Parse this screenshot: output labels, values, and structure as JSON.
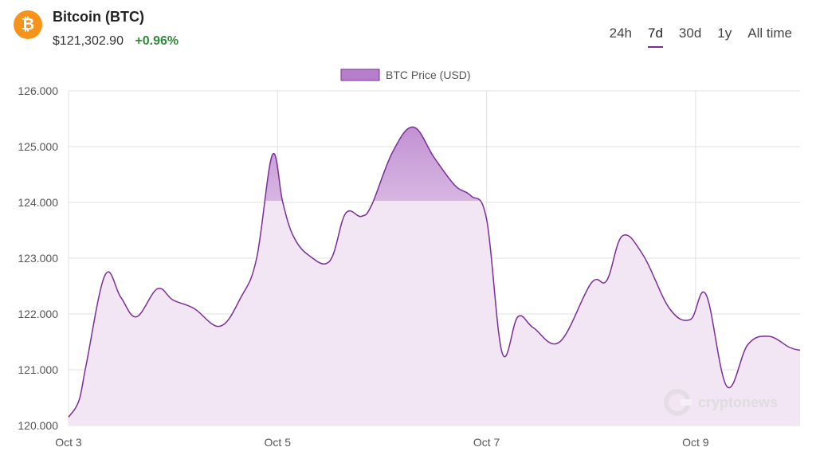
{
  "header": {
    "logo_symbol": "₿",
    "title": "Bitcoin (BTC)",
    "price": "$121,302.90",
    "change": "+0.96%",
    "change_color": "#2e8b3a"
  },
  "tabs": [
    {
      "label": "24h",
      "active": false
    },
    {
      "label": "7d",
      "active": true
    },
    {
      "label": "30d",
      "active": false
    },
    {
      "label": "1y",
      "active": false
    },
    {
      "label": "All time",
      "active": false
    }
  ],
  "watermark": "cryptonews",
  "colors": {
    "line": "#7b2d99",
    "fill": "#f2e6f5",
    "fill_highlight": "#c9a0d6",
    "legend_swatch": "#b57fcb",
    "grid": "#e2e2e2",
    "tab_underline": "#7b2d99",
    "logo": "#f7931a"
  },
  "chart_data": {
    "type": "area",
    "series": [
      {
        "name": "BTC Price (USD)",
        "x": [
          3.0,
          3.1,
          3.17,
          3.35,
          3.5,
          3.65,
          3.85,
          4.0,
          4.2,
          4.45,
          4.65,
          4.8,
          4.95,
          5.05,
          5.15,
          5.3,
          5.5,
          5.65,
          5.8,
          5.9,
          6.1,
          6.3,
          6.5,
          6.7,
          6.85,
          7.0,
          7.15,
          7.3,
          7.45,
          7.7,
          8.0,
          8.15,
          8.3,
          8.5,
          8.75,
          8.95,
          9.1,
          9.3,
          9.5,
          9.7,
          9.9,
          10.0
        ],
        "y": [
          120.15,
          120.45,
          121.1,
          122.7,
          122.3,
          121.95,
          122.45,
          122.25,
          122.1,
          121.78,
          122.3,
          123.0,
          124.85,
          124.0,
          123.4,
          123.05,
          122.95,
          123.8,
          123.75,
          123.95,
          124.9,
          125.35,
          124.8,
          124.3,
          124.12,
          123.7,
          121.3,
          121.95,
          121.75,
          121.5,
          122.55,
          122.6,
          123.4,
          123.05,
          122.1,
          121.9,
          122.35,
          120.7,
          121.45,
          121.6,
          121.4,
          121.35
        ]
      }
    ],
    "title": "",
    "xlabel": "",
    "ylabel": "",
    "x_ticks": [
      3,
      5,
      7,
      9
    ],
    "x_tick_labels": [
      "Oct 3",
      "Oct 5",
      "Oct 7",
      "Oct 9"
    ],
    "y_ticks": [
      120,
      121,
      122,
      123,
      124,
      125,
      126
    ],
    "y_tick_labels": [
      "120.000",
      "121.000",
      "122.000",
      "123.000",
      "124.000",
      "125.000",
      "126.000"
    ],
    "xlim": [
      3,
      10
    ],
    "ylim": [
      120,
      126
    ],
    "grid": true,
    "legend_position": "top-center"
  }
}
